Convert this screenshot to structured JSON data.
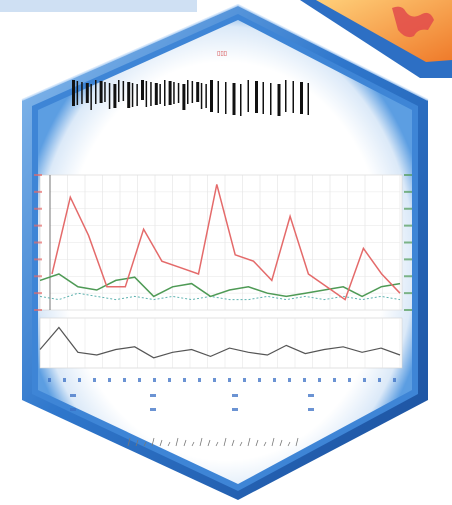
{
  "colors": {
    "frame_outer": "#1d5fb3",
    "frame_mid": "#4f93dc",
    "frame_light": "#b9d6f4",
    "panel_bg": "#ffffff",
    "accent_orange": "#f3a43a",
    "accent_red": "#e35d5d",
    "series_red": "#e46a6a",
    "series_green": "#4e9a55",
    "series_dark": "#555555",
    "grid": "#d8d8d8",
    "top_bar": "#cfe0f3"
  },
  "icons": {
    "corner_graphic": "orange-map-icon"
  },
  "chart_main": {
    "series_red": [
      10,
      34,
      22,
      6,
      6,
      24,
      14,
      12,
      10,
      38,
      16,
      14,
      8,
      28,
      10,
      6,
      2,
      18,
      10,
      4
    ],
    "series_green": [
      8,
      10,
      6,
      5,
      8,
      9,
      3,
      6,
      7,
      3,
      5,
      6,
      4,
      3,
      4,
      5,
      6,
      3,
      6,
      7
    ],
    "series_teal": [
      3,
      2,
      4,
      3,
      2,
      3,
      2,
      3,
      2,
      3,
      2,
      2,
      3,
      2,
      3,
      2,
      3,
      2,
      3,
      2
    ],
    "ymax": 40
  },
  "chart_sub": {
    "series_dark": [
      12,
      28,
      10,
      8,
      12,
      14,
      6,
      10,
      12,
      7,
      13,
      10,
      8,
      15,
      9,
      12,
      14,
      10,
      13,
      8
    ],
    "ymax": 32
  }
}
